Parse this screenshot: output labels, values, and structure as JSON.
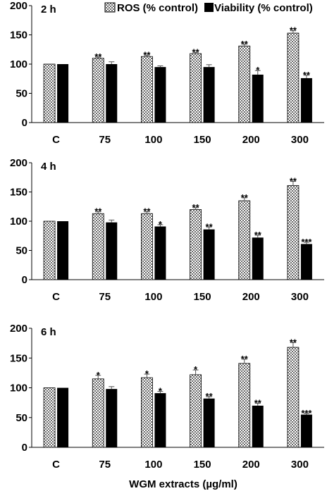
{
  "chart_data": {
    "type": "bar",
    "xlabel": "WGM extracts (µg/ml)",
    "categories": [
      "C",
      "75",
      "100",
      "150",
      "200",
      "300"
    ],
    "ylim": [
      0,
      200
    ],
    "yticks": [
      0,
      50,
      100,
      150,
      200
    ],
    "grid": false,
    "legend": {
      "placement": "top",
      "entries": [
        {
          "name": "ROS (% control)",
          "pattern": "checkered",
          "color": "#7a7a7a"
        },
        {
          "name": "Viability (% control)",
          "pattern": "solid",
          "color": "#000000"
        }
      ]
    },
    "panels": [
      {
        "label": "2 h",
        "series": [
          {
            "name": "ROS (% control)",
            "values": [
              100,
              110,
              113,
              118,
              131,
              153
            ],
            "errors": [
              0,
              2,
              2,
              2,
              3,
              4
            ],
            "marks": [
              "",
              "**",
              "**",
              "**",
              "**",
              "**"
            ]
          },
          {
            "name": "Viability (% control)",
            "values": [
              100,
              100,
              95,
              95,
              82,
              76
            ],
            "errors": [
              0,
              4,
              2,
              4,
              7,
              5
            ],
            "marks": [
              "",
              "",
              "",
              "",
              "*",
              "**"
            ]
          }
        ]
      },
      {
        "label": "4 h",
        "series": [
          {
            "name": "ROS (% control)",
            "values": [
              100,
              113,
              113,
              120,
              135,
              161
            ],
            "errors": [
              0,
              3,
              3,
              3,
              5,
              7
            ],
            "marks": [
              "",
              "**",
              "**",
              "**",
              "**",
              "**"
            ]
          },
          {
            "name": "Viability (% control)",
            "values": [
              100,
              98,
              91,
              86,
              72,
              61
            ],
            "errors": [
              0,
              4,
              3,
              4,
              4,
              3
            ],
            "marks": [
              "",
              "",
              "*",
              "**",
              "**",
              "***"
            ]
          }
        ]
      },
      {
        "label": "6 h",
        "series": [
          {
            "name": "ROS (% control)",
            "values": [
              100,
              115,
              117,
              122,
              141,
              168
            ],
            "errors": [
              0,
              6,
              6,
              8,
              7,
              8
            ],
            "marks": [
              "",
              "*",
              "*",
              "*",
              "**",
              "**"
            ]
          },
          {
            "name": "Viability (% control)",
            "values": [
              100,
              98,
              91,
              82,
              70,
              55
            ],
            "errors": [
              0,
              4,
              3,
              3,
              4,
              2
            ],
            "marks": [
              "",
              "",
              "*",
              "**",
              "**",
              "***"
            ]
          }
        ]
      }
    ]
  }
}
